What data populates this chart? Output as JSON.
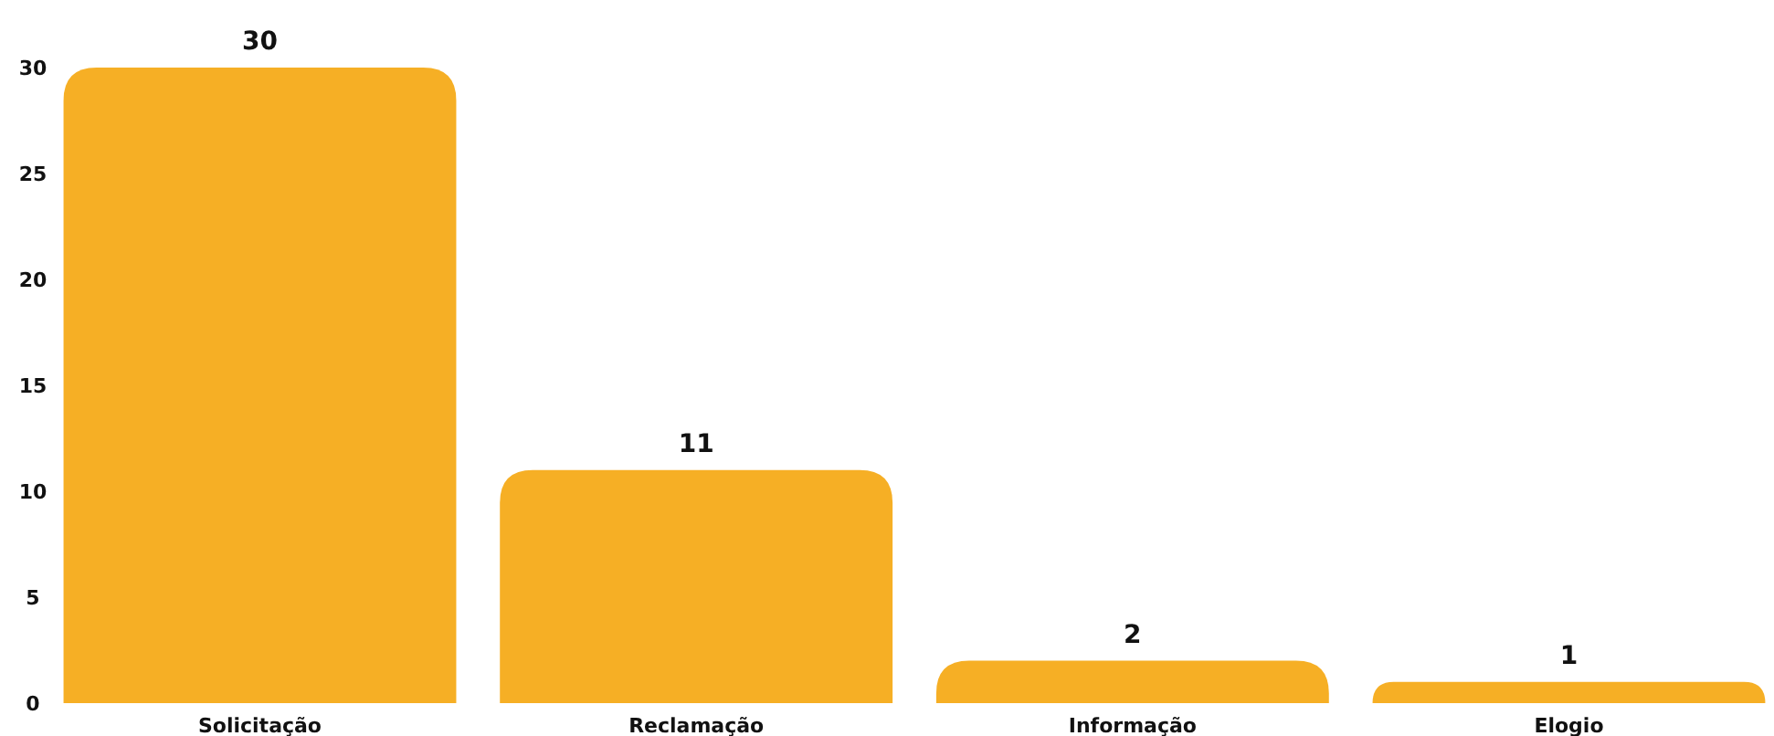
{
  "chart_data": {
    "type": "bar",
    "categories": [
      "Solicitação",
      "Reclamação",
      "Informação",
      "Elogio"
    ],
    "values": [
      30,
      11,
      2,
      1
    ],
    "color": "#f6af25",
    "ylim": [
      0,
      30
    ],
    "yticks": [
      0,
      5,
      10,
      15,
      20,
      25,
      30
    ],
    "data_labels": true
  }
}
